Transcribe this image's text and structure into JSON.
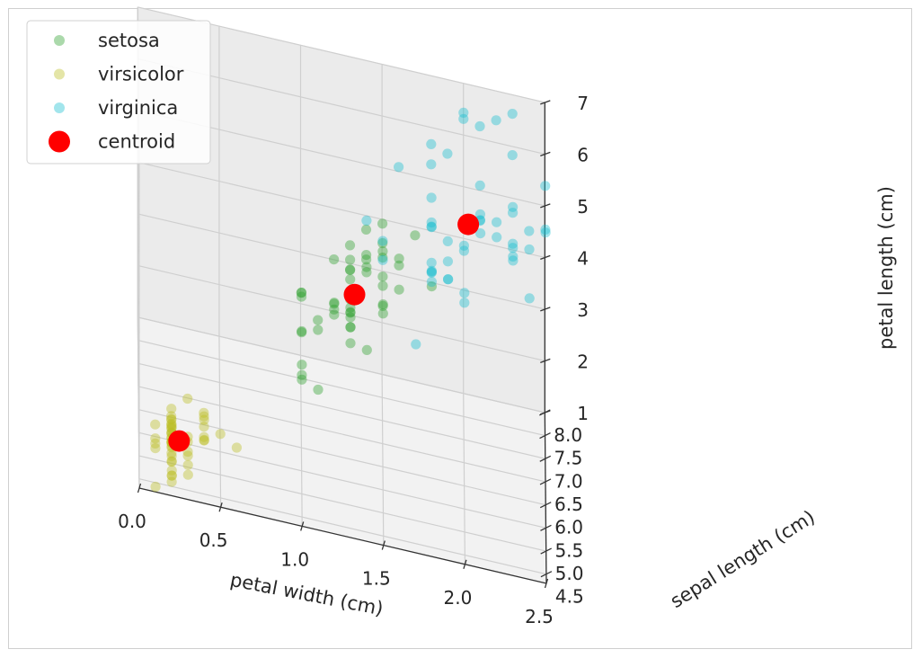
{
  "chart_data": {
    "type": "scatter",
    "projection": "3d",
    "title": "",
    "xlabel": "petal width (cm)",
    "ylabel": "sepal length (cm)",
    "zlabel": "petal length (cm)",
    "xlim": [
      0.0,
      2.5
    ],
    "ylim": [
      4.3,
      8.0
    ],
    "zlim": [
      1,
      7
    ],
    "xticks": [
      "0.0",
      "0.5",
      "1.0",
      "1.5",
      "2.0",
      "2.5"
    ],
    "yticks": [
      "4.5",
      "5.0",
      "5.5",
      "6.0",
      "6.5",
      "7.0",
      "7.5",
      "8.0"
    ],
    "zticks": [
      "1",
      "2",
      "3",
      "4",
      "5",
      "6",
      "7"
    ],
    "grid": true,
    "legend_position": "top-left",
    "series": [
      {
        "name": "setosa",
        "color": "#2ca02c",
        "alpha": 0.4,
        "points": [
          [
            1.0,
            6.0,
            4.0
          ],
          [
            1.3,
            6.4,
            4.5
          ],
          [
            1.5,
            6.9,
            4.9
          ],
          [
            1.3,
            5.5,
            4.0
          ],
          [
            1.5,
            6.5,
            4.6
          ],
          [
            1.3,
            5.7,
            4.5
          ],
          [
            1.6,
            6.3,
            4.7
          ],
          [
            1.0,
            4.9,
            3.3
          ],
          [
            1.3,
            6.6,
            4.6
          ],
          [
            1.4,
            5.2,
            3.9
          ],
          [
            1.0,
            5.0,
            3.5
          ],
          [
            1.5,
            5.9,
            4.2
          ],
          [
            1.0,
            6.0,
            4.0
          ],
          [
            1.4,
            6.1,
            4.7
          ],
          [
            1.3,
            5.6,
            3.6
          ],
          [
            1.4,
            6.7,
            4.4
          ],
          [
            1.5,
            5.6,
            4.5
          ],
          [
            1.0,
            5.8,
            4.1
          ],
          [
            1.5,
            6.2,
            4.5
          ],
          [
            1.1,
            5.6,
            3.9
          ],
          [
            1.8,
            5.9,
            4.8
          ],
          [
            1.3,
            6.1,
            4.0
          ],
          [
            1.5,
            6.3,
            4.9
          ],
          [
            1.2,
            6.1,
            4.7
          ],
          [
            1.3,
            6.4,
            4.3
          ],
          [
            1.4,
            6.6,
            4.4
          ],
          [
            1.4,
            6.8,
            4.8
          ],
          [
            1.7,
            6.7,
            5.0
          ],
          [
            1.5,
            6.0,
            4.5
          ],
          [
            1.0,
            5.7,
            3.5
          ],
          [
            1.1,
            5.5,
            3.8
          ],
          [
            1.0,
            5.5,
            3.7
          ],
          [
            1.2,
            5.8,
            3.9
          ],
          [
            1.6,
            6.0,
            5.1
          ],
          [
            1.5,
            5.4,
            4.5
          ],
          [
            1.6,
            6.0,
            4.5
          ],
          [
            1.5,
            6.7,
            4.7
          ],
          [
            1.3,
            6.3,
            4.4
          ],
          [
            1.3,
            5.6,
            4.1
          ],
          [
            1.3,
            5.5,
            4.0
          ],
          [
            1.2,
            5.5,
            4.4
          ],
          [
            1.4,
            6.1,
            4.6
          ],
          [
            1.2,
            5.8,
            4.0
          ],
          [
            1.0,
            5.0,
            3.3
          ],
          [
            1.3,
            5.6,
            4.2
          ],
          [
            1.2,
            5.7,
            4.2
          ],
          [
            1.3,
            5.7,
            4.2
          ],
          [
            1.3,
            6.2,
            4.3
          ],
          [
            1.1,
            5.1,
            3.0
          ],
          [
            1.3,
            5.7,
            4.1
          ]
        ]
      },
      {
        "name": "virsicolor",
        "color": "#bcbd22",
        "alpha": 0.4,
        "points": [
          [
            0.2,
            5.1,
            1.4
          ],
          [
            0.2,
            4.9,
            1.4
          ],
          [
            0.2,
            4.7,
            1.3
          ],
          [
            0.2,
            4.6,
            1.5
          ],
          [
            0.2,
            5.0,
            1.4
          ],
          [
            0.4,
            5.4,
            1.7
          ],
          [
            0.3,
            4.6,
            1.4
          ],
          [
            0.2,
            5.0,
            1.5
          ],
          [
            0.2,
            4.4,
            1.4
          ],
          [
            0.1,
            4.9,
            1.5
          ],
          [
            0.2,
            5.4,
            1.5
          ],
          [
            0.2,
            4.8,
            1.6
          ],
          [
            0.1,
            4.8,
            1.4
          ],
          [
            0.1,
            4.3,
            1.1
          ],
          [
            0.2,
            5.8,
            1.2
          ],
          [
            0.4,
            5.7,
            1.5
          ],
          [
            0.4,
            5.4,
            1.3
          ],
          [
            0.3,
            5.1,
            1.4
          ],
          [
            0.3,
            5.7,
            1.7
          ],
          [
            0.3,
            5.1,
            1.5
          ],
          [
            0.2,
            5.4,
            1.7
          ],
          [
            0.4,
            5.1,
            1.5
          ],
          [
            0.2,
            4.6,
            1.0
          ],
          [
            0.5,
            5.1,
            1.7
          ],
          [
            0.2,
            4.8,
            1.9
          ],
          [
            0.2,
            5.0,
            1.6
          ],
          [
            0.4,
            5.0,
            1.6
          ],
          [
            0.2,
            5.2,
            1.5
          ],
          [
            0.2,
            5.2,
            1.4
          ],
          [
            0.2,
            4.7,
            1.6
          ],
          [
            0.2,
            4.8,
            1.6
          ],
          [
            0.4,
            5.4,
            1.5
          ],
          [
            0.1,
            5.2,
            1.5
          ],
          [
            0.2,
            5.5,
            1.4
          ],
          [
            0.2,
            4.9,
            1.5
          ],
          [
            0.2,
            5.0,
            1.2
          ],
          [
            0.2,
            5.5,
            1.3
          ],
          [
            0.1,
            4.9,
            1.4
          ],
          [
            0.2,
            4.4,
            1.3
          ],
          [
            0.2,
            5.1,
            1.5
          ],
          [
            0.3,
            5.0,
            1.3
          ],
          [
            0.3,
            4.5,
            1.3
          ],
          [
            0.2,
            4.4,
            1.3
          ],
          [
            0.6,
            5.0,
            1.6
          ],
          [
            0.4,
            5.1,
            1.9
          ],
          [
            0.3,
            4.8,
            1.4
          ],
          [
            0.2,
            5.1,
            1.6
          ],
          [
            0.2,
            4.6,
            1.4
          ],
          [
            0.2,
            5.3,
            1.5
          ],
          [
            0.2,
            5.0,
            1.4
          ]
        ]
      },
      {
        "name": "virginica",
        "color": "#17becf",
        "alpha": 0.4,
        "points": [
          [
            2.5,
            6.3,
            6.0
          ],
          [
            1.9,
            5.8,
            5.1
          ],
          [
            2.1,
            7.1,
            5.9
          ],
          [
            1.8,
            6.3,
            5.6
          ],
          [
            2.2,
            6.5,
            5.8
          ],
          [
            2.1,
            7.6,
            6.6
          ],
          [
            1.7,
            4.9,
            4.5
          ],
          [
            1.8,
            7.3,
            6.3
          ],
          [
            1.8,
            6.7,
            5.8
          ],
          [
            2.5,
            7.2,
            6.1
          ],
          [
            2.0,
            6.5,
            5.1
          ],
          [
            1.9,
            6.4,
            5.3
          ],
          [
            2.1,
            6.8,
            5.5
          ],
          [
            2.0,
            5.7,
            5.0
          ],
          [
            2.4,
            5.8,
            5.1
          ],
          [
            2.3,
            6.4,
            5.3
          ],
          [
            1.8,
            6.5,
            5.5
          ],
          [
            2.2,
            7.7,
            6.7
          ],
          [
            2.3,
            7.7,
            6.9
          ],
          [
            1.5,
            6.0,
            5.0
          ],
          [
            2.3,
            6.9,
            5.7
          ],
          [
            2.0,
            5.6,
            4.9
          ],
          [
            2.0,
            7.7,
            6.7
          ],
          [
            1.8,
            6.3,
            4.9
          ],
          [
            2.1,
            6.7,
            5.7
          ],
          [
            1.8,
            7.2,
            6.0
          ],
          [
            1.8,
            6.2,
            4.8
          ],
          [
            1.8,
            6.1,
            4.9
          ],
          [
            2.1,
            6.4,
            5.6
          ],
          [
            1.6,
            7.2,
            5.8
          ],
          [
            1.9,
            7.4,
            6.1
          ],
          [
            2.0,
            7.9,
            6.4
          ],
          [
            2.2,
            6.4,
            5.6
          ],
          [
            1.5,
            6.3,
            5.1
          ],
          [
            1.4,
            6.1,
            5.6
          ],
          [
            2.3,
            7.7,
            6.1
          ],
          [
            2.4,
            6.3,
            5.6
          ],
          [
            1.8,
            6.4,
            5.5
          ],
          [
            1.8,
            6.0,
            4.8
          ],
          [
            2.1,
            6.9,
            5.4
          ],
          [
            2.4,
            6.7,
            5.6
          ],
          [
            2.3,
            6.9,
            5.1
          ],
          [
            1.9,
            5.8,
            5.1
          ],
          [
            2.3,
            6.8,
            5.9
          ],
          [
            2.5,
            6.7,
            5.7
          ],
          [
            2.3,
            6.7,
            5.2
          ],
          [
            1.9,
            6.3,
            5.0
          ],
          [
            2.0,
            6.5,
            5.2
          ],
          [
            2.3,
            6.2,
            5.4
          ],
          [
            1.8,
            5.9,
            5.1
          ]
        ]
      },
      {
        "name": "centroid",
        "color": "#ff0000",
        "alpha": 1.0,
        "points": [
          [
            0.246,
            5.006,
            1.462
          ],
          [
            1.326,
            5.936,
            4.26
          ],
          [
            2.026,
            6.588,
            5.552
          ]
        ]
      }
    ]
  }
}
